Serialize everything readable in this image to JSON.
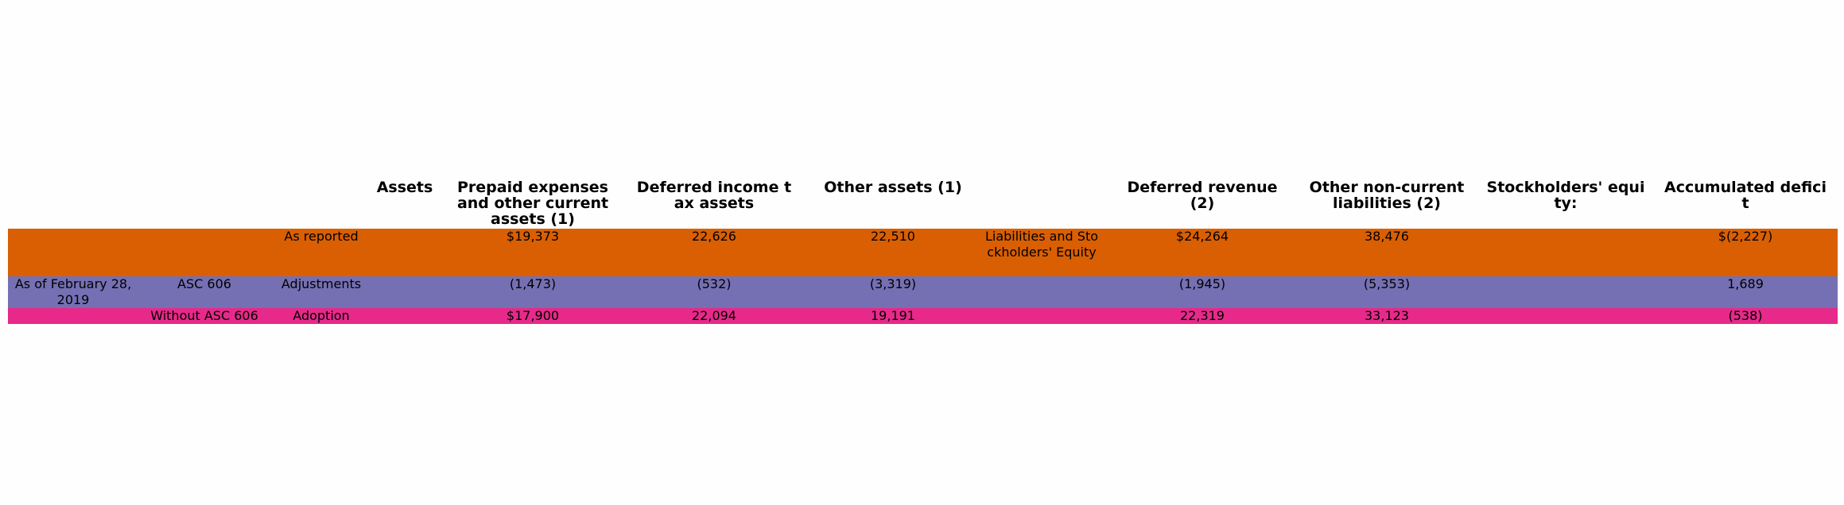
{
  "chart_data": {
    "type": "table",
    "columns": [
      "",
      "",
      "",
      "Assets",
      "Prepaid expenses and other current assets (1)",
      "Deferred income tax assets",
      "Other assets (1)",
      "",
      "Deferred revenue (2)",
      "Other non-current liabilities (2)",
      "Stockholders' equity:",
      "Accumulated deficit"
    ],
    "rows": [
      {
        "color": "#d95f02",
        "cells": [
          "",
          "",
          "As reported",
          "",
          "$19,373",
          "22,626",
          "22,510",
          "Liabilities and Stockholders' Equity",
          "$24,264",
          "38,476",
          "",
          "$(2,227)"
        ]
      },
      {
        "color": "#7570b3",
        "cells": [
          "As of February 28, 2019",
          "ASC 606",
          "Adjustments",
          "",
          "(1,473)",
          "(532)",
          "(3,319)",
          "",
          "(1,945)",
          "(5,353)",
          "",
          "1,689"
        ]
      },
      {
        "color": "#e7298a",
        "cells": [
          "",
          "Without ASC 606",
          "Adoption",
          "",
          "$17,900",
          "22,094",
          "19,191",
          "",
          "22,319",
          "33,123",
          "",
          "(538)"
        ]
      }
    ]
  }
}
